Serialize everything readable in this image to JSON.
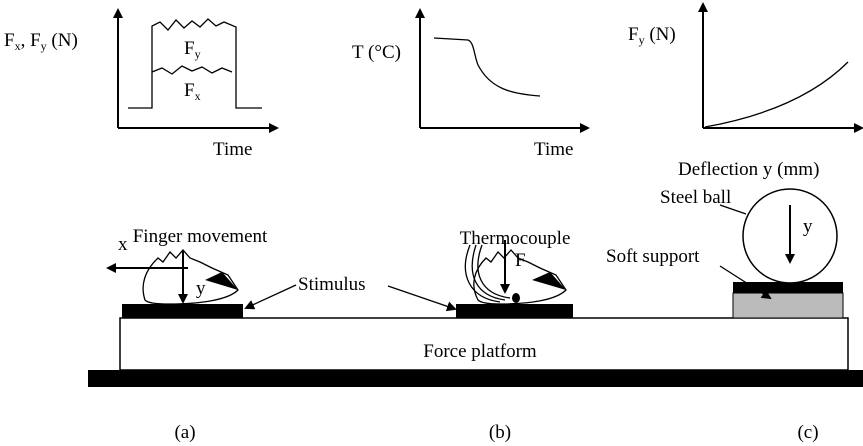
{
  "plots": [
    {
      "y_label": [
        "F",
        "x",
        ", F",
        "y",
        " (N)"
      ],
      "x_label": "Time",
      "curve_labels": [
        [
          "F",
          "y"
        ],
        [
          "F",
          "x"
        ]
      ]
    },
    {
      "y_label": "T (°C)",
      "x_label": "Time"
    },
    {
      "y_label": [
        "F",
        "y",
        " (N)"
      ],
      "x_label": "Deflection y (mm)"
    }
  ],
  "setup": {
    "finger_movement": "Finger movement",
    "x_axis": "x",
    "y_axis": "y",
    "stimulus": "Stimulus",
    "thermocouple": "Thermocouple",
    "force": "F",
    "steel_ball": "Steel ball",
    "ball_y": "y",
    "soft_support": "Soft support",
    "force_platform": "Force platform"
  },
  "panel_labels": [
    "(a)",
    "(b)",
    "(c)"
  ]
}
